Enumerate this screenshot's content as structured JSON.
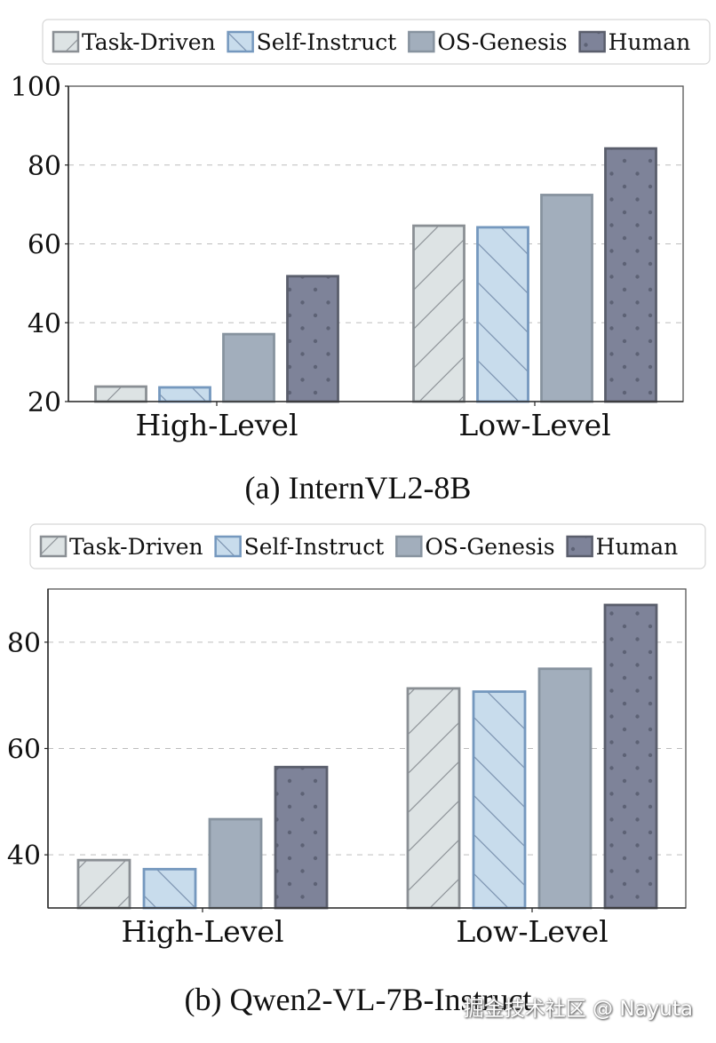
{
  "chart_data": [
    {
      "type": "bar",
      "title": "",
      "caption": "(a) InternVL2-8B",
      "xlabel": "",
      "ylabel": "",
      "categories": [
        "High-Level",
        "Low-Level"
      ],
      "ylim": [
        20,
        100
      ],
      "yticks": [
        20,
        40,
        60,
        80,
        100
      ],
      "grid": true,
      "legend_position": "top",
      "series": [
        {
          "name": "Task-Driven",
          "values": [
            23.8,
            64.6
          ],
          "fill": "#dde3e4",
          "stroke": "#8a8f94",
          "hatch": "diag-up"
        },
        {
          "name": "Self-Instruct",
          "values": [
            23.6,
            64.2
          ],
          "fill": "#c8dcec",
          "stroke": "#7598be",
          "hatch": "diag-down"
        },
        {
          "name": "OS-Genesis",
          "values": [
            37.1,
            72.4
          ],
          "fill": "#a2aebc",
          "stroke": "#87939f",
          "hatch": "none"
        },
        {
          "name": "Human",
          "values": [
            51.8,
            84.2
          ],
          "fill": "#7e8399",
          "stroke": "#5a5e6c",
          "hatch": "dots"
        }
      ]
    },
    {
      "type": "bar",
      "title": "",
      "caption": "(b) Qwen2-VL-7B-Instruct",
      "xlabel": "",
      "ylabel": "",
      "categories": [
        "High-Level",
        "Low-Level"
      ],
      "ylim": [
        30,
        90
      ],
      "yticks": [
        40,
        60,
        80
      ],
      "grid": true,
      "legend_position": "top",
      "series": [
        {
          "name": "Task-Driven",
          "values": [
            39.0,
            71.3
          ],
          "fill": "#dde3e4",
          "stroke": "#8a8f94",
          "hatch": "diag-up"
        },
        {
          "name": "Self-Instruct",
          "values": [
            37.3,
            70.7
          ],
          "fill": "#c8dcec",
          "stroke": "#7598be",
          "hatch": "diag-down"
        },
        {
          "name": "OS-Genesis",
          "values": [
            46.7,
            75.0
          ],
          "fill": "#a2aebc",
          "stroke": "#87939f",
          "hatch": "none"
        },
        {
          "name": "Human",
          "values": [
            56.5,
            87.0
          ],
          "fill": "#7e8399",
          "stroke": "#5a5e6c",
          "hatch": "dots"
        }
      ]
    }
  ],
  "watermark": "掘金技术社区 @ Nayuta"
}
